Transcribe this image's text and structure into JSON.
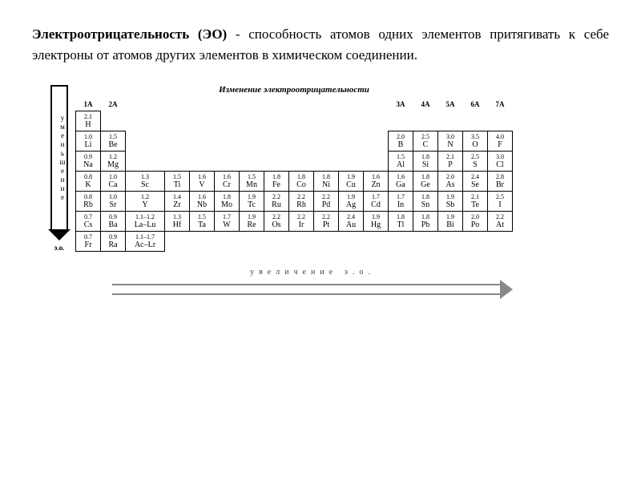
{
  "definition": {
    "term": "Электроотрицательность (ЭО)",
    "rest": " - способность атомов одних элементов притягивать к себе электроны от атомов других элементов в химическом соединении."
  },
  "chart": {
    "title": "Изменение электроотрицательности",
    "y_label": "уменьшение",
    "y_unit": "э.о.",
    "x_label": "увеличение э.о."
  },
  "groups": [
    "1A",
    "2A",
    "3B",
    "4B",
    "5B",
    "6B",
    "7B",
    "8Ba",
    "8Bb",
    "8Bc",
    "1B",
    "2B",
    "3A",
    "4A",
    "5A",
    "6A",
    "7A"
  ],
  "group_headers": {
    "1A": "1A",
    "2A": "2A",
    "3A": "3A",
    "4A": "4A",
    "5A": "5A",
    "6A": "6A",
    "7A": "7A"
  },
  "rows": [
    {
      "1A": {
        "en": "2.1",
        "sym": "H"
      }
    },
    {
      "1A": {
        "en": "1.0",
        "sym": "Li"
      },
      "2A": {
        "en": "1.5",
        "sym": "Be"
      },
      "3A": {
        "en": "2.0",
        "sym": "B"
      },
      "4A": {
        "en": "2.5",
        "sym": "C"
      },
      "5A": {
        "en": "3.0",
        "sym": "N"
      },
      "6A": {
        "en": "3.5",
        "sym": "O"
      },
      "7A": {
        "en": "4.0",
        "sym": "F"
      }
    },
    {
      "1A": {
        "en": "0.9",
        "sym": "Na"
      },
      "2A": {
        "en": "1.2",
        "sym": "Mg"
      },
      "3A": {
        "en": "1.5",
        "sym": "Al"
      },
      "4A": {
        "en": "1.8",
        "sym": "Si"
      },
      "5A": {
        "en": "2.1",
        "sym": "P"
      },
      "6A": {
        "en": "2.5",
        "sym": "S"
      },
      "7A": {
        "en": "3.0",
        "sym": "Cl"
      }
    },
    {
      "1A": {
        "en": "0.8",
        "sym": "K"
      },
      "2A": {
        "en": "1.0",
        "sym": "Ca"
      },
      "3B": {
        "en": "1.3",
        "sym": "Sc"
      },
      "4B": {
        "en": "1.5",
        "sym": "Ti"
      },
      "5B": {
        "en": "1.6",
        "sym": "V"
      },
      "6B": {
        "en": "1.6",
        "sym": "Cr"
      },
      "7B": {
        "en": "1.5",
        "sym": "Mn"
      },
      "8Ba": {
        "en": "1.8",
        "sym": "Fe"
      },
      "8Bb": {
        "en": "1.8",
        "sym": "Co"
      },
      "8Bc": {
        "en": "1.8",
        "sym": "Ni"
      },
      "1B": {
        "en": "1.9",
        "sym": "Cu"
      },
      "2B": {
        "en": "1.6",
        "sym": "Zn"
      },
      "3A": {
        "en": "1.6",
        "sym": "Ga"
      },
      "4A": {
        "en": "1.8",
        "sym": "Ge"
      },
      "5A": {
        "en": "2.0",
        "sym": "As"
      },
      "6A": {
        "en": "2.4",
        "sym": "Se"
      },
      "7A": {
        "en": "2.8",
        "sym": "Br"
      }
    },
    {
      "1A": {
        "en": "0.8",
        "sym": "Rb"
      },
      "2A": {
        "en": "1.0",
        "sym": "Sr"
      },
      "3B": {
        "en": "1.2",
        "sym": "Y"
      },
      "4B": {
        "en": "1.4",
        "sym": "Zr"
      },
      "5B": {
        "en": "1.6",
        "sym": "Nb"
      },
      "6B": {
        "en": "1.8",
        "sym": "Mo"
      },
      "7B": {
        "en": "1.9",
        "sym": "Tc"
      },
      "8Ba": {
        "en": "2.2",
        "sym": "Ru"
      },
      "8Bb": {
        "en": "2.2",
        "sym": "Rh"
      },
      "8Bc": {
        "en": "2.2",
        "sym": "Pd"
      },
      "1B": {
        "en": "1.9",
        "sym": "Ag"
      },
      "2B": {
        "en": "1.7",
        "sym": "Cd"
      },
      "3A": {
        "en": "1.7",
        "sym": "In"
      },
      "4A": {
        "en": "1.8",
        "sym": "Sn"
      },
      "5A": {
        "en": "1.9",
        "sym": "Sb"
      },
      "6A": {
        "en": "2.1",
        "sym": "Te"
      },
      "7A": {
        "en": "2.5",
        "sym": "I"
      }
    },
    {
      "1A": {
        "en": "0.7",
        "sym": "Cs"
      },
      "2A": {
        "en": "0.9",
        "sym": "Ba"
      },
      "3B": {
        "en": "1.1–1.2",
        "sym": "La–Lu"
      },
      "4B": {
        "en": "1.3",
        "sym": "Hf"
      },
      "5B": {
        "en": "1.5",
        "sym": "Ta"
      },
      "6B": {
        "en": "1.7",
        "sym": "W"
      },
      "7B": {
        "en": "1.9",
        "sym": "Re"
      },
      "8Ba": {
        "en": "2.2",
        "sym": "Os"
      },
      "8Bb": {
        "en": "2.2",
        "sym": "Ir"
      },
      "8Bc": {
        "en": "2.2",
        "sym": "Pt"
      },
      "1B": {
        "en": "2.4",
        "sym": "Au"
      },
      "2B": {
        "en": "1.9",
        "sym": "Hg"
      },
      "3A": {
        "en": "1.8",
        "sym": "Tl"
      },
      "4A": {
        "en": "1.8",
        "sym": "Pb"
      },
      "5A": {
        "en": "1.9",
        "sym": "Bi"
      },
      "6A": {
        "en": "2.0",
        "sym": "Po"
      },
      "7A": {
        "en": "2.2",
        "sym": "At"
      }
    },
    {
      "1A": {
        "en": "0.7",
        "sym": "Fr"
      },
      "2A": {
        "en": "0.9",
        "sym": "Ra"
      },
      "3B": {
        "en": "1.1–1.7",
        "sym": "Ac–Lr"
      }
    }
  ]
}
